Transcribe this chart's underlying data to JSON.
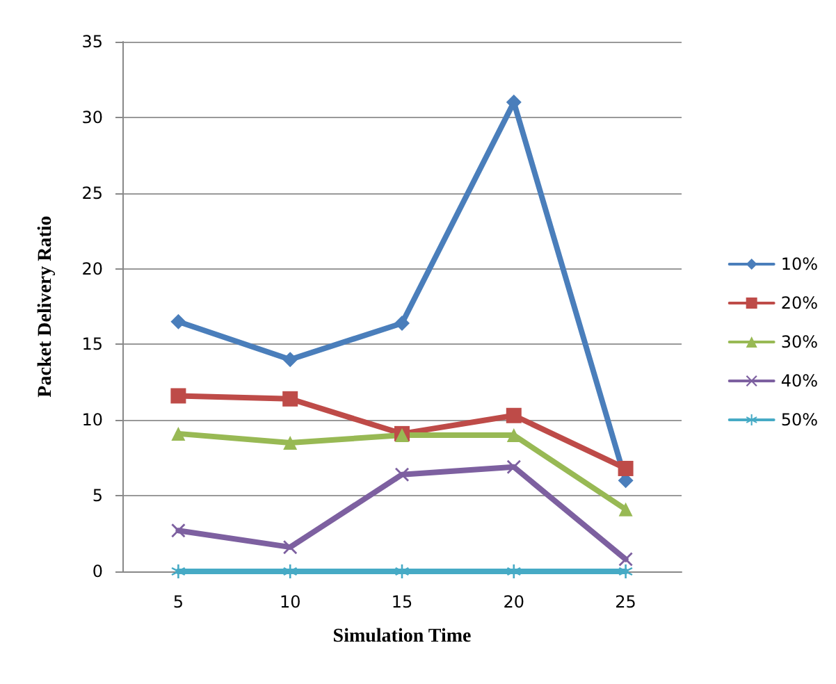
{
  "chart_data": {
    "type": "line",
    "xlabel": "Simulation Time",
    "ylabel": "Packet Delivery Ratio",
    "categories": [
      "5",
      "10",
      "15",
      "20",
      "25"
    ],
    "series": [
      {
        "name": "10%",
        "color": "#4a7ebb",
        "marker": "diamond",
        "values": [
          16.5,
          14,
          16.4,
          31,
          6
        ]
      },
      {
        "name": "20%",
        "color": "#be4b48",
        "marker": "square",
        "values": [
          11.6,
          11.4,
          9.1,
          10.3,
          6.8
        ]
      },
      {
        "name": "30%",
        "color": "#98b954",
        "marker": "triangle",
        "values": [
          9.1,
          8.5,
          9,
          9,
          4.1
        ]
      },
      {
        "name": "40%",
        "color": "#7d60a0",
        "marker": "cross",
        "values": [
          2.7,
          1.6,
          6.4,
          6.9,
          0.8
        ]
      },
      {
        "name": "50%",
        "color": "#46aac5",
        "marker": "star",
        "values": [
          0,
          0,
          0,
          0,
          0
        ]
      }
    ],
    "ylim": [
      0,
      35
    ],
    "yticks": [
      0,
      5,
      10,
      15,
      20,
      25,
      30,
      35
    ],
    "grid": "y",
    "legend": "right",
    "line_style": "solid"
  }
}
